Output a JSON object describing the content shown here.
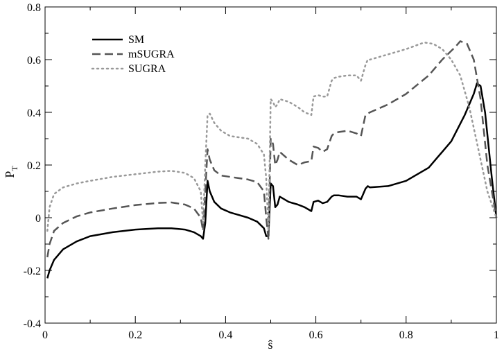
{
  "chart_data": {
    "type": "line",
    "xlabel": "ŝ",
    "ylabel": "P",
    "ylabel_subscript": "T",
    "xlim": [
      0,
      1
    ],
    "ylim": [
      -0.4,
      0.8
    ],
    "xticks": [
      "0",
      "0.2",
      "0.4",
      "0.6",
      "0.8",
      "1"
    ],
    "xtick_values": [
      0,
      0.2,
      0.4,
      0.6,
      0.8,
      1
    ],
    "yticks": [
      "-0.4",
      "-0.2",
      "0",
      "0.2",
      "0.4",
      "0.6",
      "0.8"
    ],
    "ytick_values": [
      -0.4,
      -0.2,
      0,
      0.2,
      0.4,
      0.6,
      0.8
    ],
    "grid": false,
    "legend_position": "top-left",
    "series": [
      {
        "name": "SM",
        "style": "solid",
        "color": "#000000",
        "x": [
          0.005,
          0.01,
          0.02,
          0.04,
          0.07,
          0.1,
          0.15,
          0.2,
          0.25,
          0.28,
          0.31,
          0.33,
          0.345,
          0.35,
          0.355,
          0.36,
          0.365,
          0.375,
          0.39,
          0.41,
          0.43,
          0.45,
          0.47,
          0.485,
          0.49,
          0.495,
          0.5,
          0.505,
          0.51,
          0.515,
          0.52,
          0.54,
          0.56,
          0.575,
          0.59,
          0.595,
          0.605,
          0.615,
          0.625,
          0.635,
          0.64,
          0.65,
          0.67,
          0.69,
          0.7,
          0.71,
          0.715,
          0.72,
          0.76,
          0.8,
          0.85,
          0.9,
          0.93,
          0.95,
          0.957,
          0.965,
          0.975,
          0.99,
          1.0
        ],
        "y": [
          -0.23,
          -0.2,
          -0.16,
          -0.12,
          -0.09,
          -0.07,
          -0.055,
          -0.045,
          -0.04,
          -0.04,
          -0.045,
          -0.055,
          -0.07,
          -0.08,
          -0.02,
          0.14,
          0.1,
          0.06,
          0.035,
          0.02,
          0.01,
          0.0,
          -0.015,
          -0.04,
          -0.07,
          -0.07,
          0.13,
          0.12,
          0.04,
          0.05,
          0.08,
          0.06,
          0.05,
          0.04,
          0.025,
          0.06,
          0.065,
          0.055,
          0.06,
          0.08,
          0.085,
          0.085,
          0.08,
          0.08,
          0.07,
          0.11,
          0.12,
          0.115,
          0.12,
          0.14,
          0.19,
          0.29,
          0.39,
          0.47,
          0.51,
          0.5,
          0.4,
          0.15,
          0.0
        ]
      },
      {
        "name": "mSUGRA",
        "style": "dashed",
        "color": "#555555",
        "x": [
          0.005,
          0.01,
          0.02,
          0.04,
          0.07,
          0.1,
          0.15,
          0.2,
          0.25,
          0.28,
          0.31,
          0.33,
          0.345,
          0.35,
          0.355,
          0.36,
          0.365,
          0.375,
          0.39,
          0.41,
          0.43,
          0.45,
          0.47,
          0.485,
          0.49,
          0.495,
          0.5,
          0.505,
          0.51,
          0.515,
          0.52,
          0.54,
          0.56,
          0.575,
          0.59,
          0.595,
          0.605,
          0.615,
          0.625,
          0.635,
          0.64,
          0.65,
          0.67,
          0.69,
          0.7,
          0.71,
          0.715,
          0.72,
          0.76,
          0.8,
          0.85,
          0.88,
          0.91,
          0.92,
          0.935,
          0.95,
          0.965,
          0.98,
          1.0
        ],
        "y": [
          -0.15,
          -0.1,
          -0.05,
          -0.02,
          0.005,
          0.02,
          0.035,
          0.048,
          0.056,
          0.058,
          0.05,
          0.035,
          0.0,
          -0.05,
          0.1,
          0.26,
          0.22,
          0.18,
          0.16,
          0.155,
          0.15,
          0.145,
          0.135,
          0.1,
          0.0,
          -0.08,
          0.3,
          0.28,
          0.2,
          0.22,
          0.25,
          0.22,
          0.2,
          0.21,
          0.215,
          0.27,
          0.265,
          0.25,
          0.26,
          0.31,
          0.32,
          0.325,
          0.33,
          0.32,
          0.31,
          0.39,
          0.395,
          0.4,
          0.43,
          0.47,
          0.54,
          0.6,
          0.65,
          0.67,
          0.66,
          0.6,
          0.45,
          0.2,
          0.0
        ]
      },
      {
        "name": "SUGRA",
        "style": "dotted",
        "color": "#999999",
        "x": [
          0.005,
          0.01,
          0.02,
          0.04,
          0.07,
          0.1,
          0.15,
          0.2,
          0.25,
          0.28,
          0.31,
          0.33,
          0.345,
          0.35,
          0.355,
          0.36,
          0.365,
          0.375,
          0.39,
          0.41,
          0.43,
          0.45,
          0.47,
          0.485,
          0.49,
          0.495,
          0.5,
          0.505,
          0.51,
          0.515,
          0.52,
          0.54,
          0.56,
          0.575,
          0.59,
          0.595,
          0.605,
          0.615,
          0.625,
          0.635,
          0.64,
          0.65,
          0.67,
          0.69,
          0.7,
          0.71,
          0.715,
          0.72,
          0.76,
          0.8,
          0.84,
          0.86,
          0.88,
          0.9,
          0.92,
          0.94,
          0.96,
          0.98,
          1.0
        ],
        "y": [
          -0.05,
          0.04,
          0.09,
          0.115,
          0.13,
          0.14,
          0.155,
          0.165,
          0.175,
          0.178,
          0.17,
          0.15,
          0.1,
          -0.02,
          0.2,
          0.39,
          0.395,
          0.36,
          0.33,
          0.31,
          0.305,
          0.3,
          0.28,
          0.24,
          0.15,
          -0.05,
          0.45,
          0.44,
          0.42,
          0.43,
          0.45,
          0.44,
          0.42,
          0.4,
          0.39,
          0.46,
          0.465,
          0.46,
          0.46,
          0.52,
          0.53,
          0.535,
          0.54,
          0.54,
          0.52,
          0.58,
          0.6,
          0.6,
          0.62,
          0.64,
          0.665,
          0.66,
          0.64,
          0.6,
          0.54,
          0.42,
          0.26,
          0.1,
          0.0
        ]
      }
    ]
  }
}
